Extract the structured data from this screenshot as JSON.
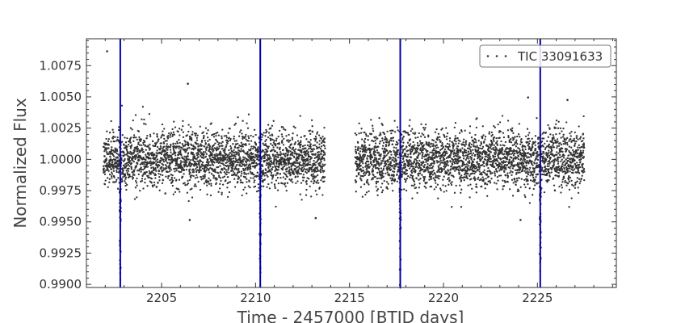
{
  "chart_data": {
    "type": "scatter",
    "title": "",
    "xlabel": "Time - 2457000 [BTJD days]",
    "ylabel": "Normalized Flux",
    "xlim": [
      2201.0,
      2229.2
    ],
    "ylim": [
      0.98975,
      1.00965
    ],
    "xticks": [
      2205,
      2210,
      2215,
      2220,
      2225
    ],
    "xtick_labels": [
      "2205",
      "2210",
      "2215",
      "2220",
      "2225"
    ],
    "yticks": [
      0.99,
      0.9925,
      0.995,
      0.9975,
      1.0,
      1.0025,
      1.005,
      1.0075
    ],
    "ytick_labels": [
      "0.9900",
      "0.9925",
      "0.9950",
      "0.9975",
      "1.0000",
      "1.0025",
      "1.0050",
      "1.0075"
    ],
    "grid": false,
    "legend": {
      "location": "upper right",
      "entries": [
        "TIC 33091633"
      ]
    },
    "series": [
      {
        "name": "TIC 33091633",
        "marker": "dot",
        "color": "#333333",
        "segments": [
          {
            "x_start": 2201.9,
            "x_end": 2213.7,
            "median": 1.0,
            "scatter_sigma": 0.00115
          },
          {
            "x_start": 2215.3,
            "x_end": 2227.5,
            "median": 1.0,
            "scatter_sigma": 0.00115
          }
        ],
        "notable_points": [
          {
            "x": 2202.1,
            "y": 1.00865
          },
          {
            "x": 2206.4,
            "y": 1.00605
          },
          {
            "x": 2224.5,
            "y": 1.00495
          },
          {
            "x": 2226.6,
            "y": 1.00475
          },
          {
            "x": 2206.5,
            "y": 0.99515
          },
          {
            "x": 2213.2,
            "y": 0.9953
          },
          {
            "x": 2224.1,
            "y": 0.99515
          }
        ]
      }
    ],
    "transits": {
      "color": "#0000aa",
      "x": [
        2202.8,
        2210.25,
        2217.7,
        2225.15
      ],
      "dip_depth": 0.0085
    }
  }
}
